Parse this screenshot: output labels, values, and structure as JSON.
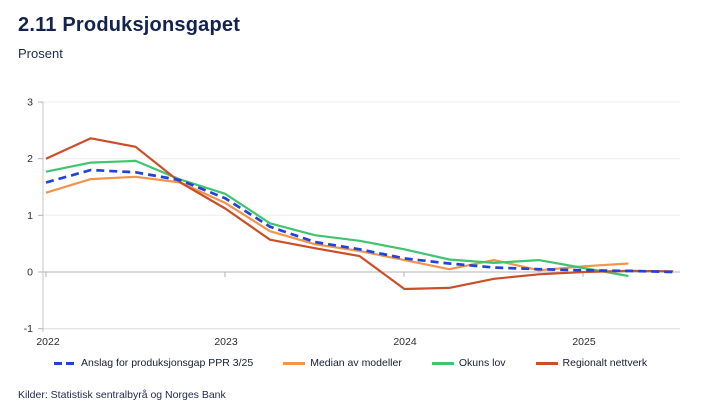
{
  "header": {
    "title": "2.11 Produksjonsgapet",
    "subtitle": "Prosent"
  },
  "source": "Kilder: Statistisk sentralbyrå og Norges Bank",
  "chart_data": {
    "type": "line",
    "title": "2.11 Produksjonsgapet",
    "ylabel": "Prosent",
    "ylim": [
      -1,
      3
    ],
    "y_tick_labels": [
      "3",
      "2",
      "1",
      "0",
      "-1"
    ],
    "x_tick_labels": [
      "2022",
      "2023",
      "2024",
      "2025"
    ],
    "grid": "horizontal, light gray; zero line darker; year ticks on zero line",
    "legend_position": "bottom",
    "quarters": [
      "2022Q1",
      "2022Q2",
      "2022Q3",
      "2022Q4",
      "2023Q1",
      "2023Q2",
      "2023Q3",
      "2023Q4",
      "2024Q1",
      "2024Q2",
      "2024Q3",
      "2024Q4",
      "2025Q1",
      "2025Q2",
      "2025Q3"
    ],
    "series": [
      {
        "name": "Anslag for produksjonsgap PPR 3/25",
        "color": "#2043dc",
        "style": "dashed",
        "values": [
          1.58,
          1.8,
          1.76,
          1.62,
          1.3,
          0.8,
          0.53,
          0.4,
          0.24,
          0.15,
          0.08,
          0.05,
          0.03,
          0.02,
          0.0
        ]
      },
      {
        "name": "Median av modeller",
        "color": "#f2944a",
        "style": "solid",
        "values": [
          1.4,
          1.64,
          1.68,
          1.58,
          1.22,
          0.72,
          0.49,
          0.37,
          0.21,
          0.05,
          0.21,
          0.03,
          0.1,
          0.15,
          null
        ]
      },
      {
        "name": "Okuns lov",
        "color": "#3fc46f",
        "style": "solid",
        "values": [
          1.77,
          1.93,
          1.96,
          1.63,
          1.38,
          0.86,
          0.65,
          0.55,
          0.4,
          0.22,
          0.16,
          0.21,
          0.07,
          -0.07,
          null
        ]
      },
      {
        "name": "Regionalt nettverk",
        "color": "#cc4e28",
        "style": "solid",
        "values": [
          2.0,
          2.36,
          2.21,
          1.58,
          1.12,
          0.57,
          0.42,
          0.28,
          -0.3,
          -0.28,
          -0.12,
          -0.04,
          0.0,
          0.02,
          0.01
        ]
      }
    ]
  }
}
